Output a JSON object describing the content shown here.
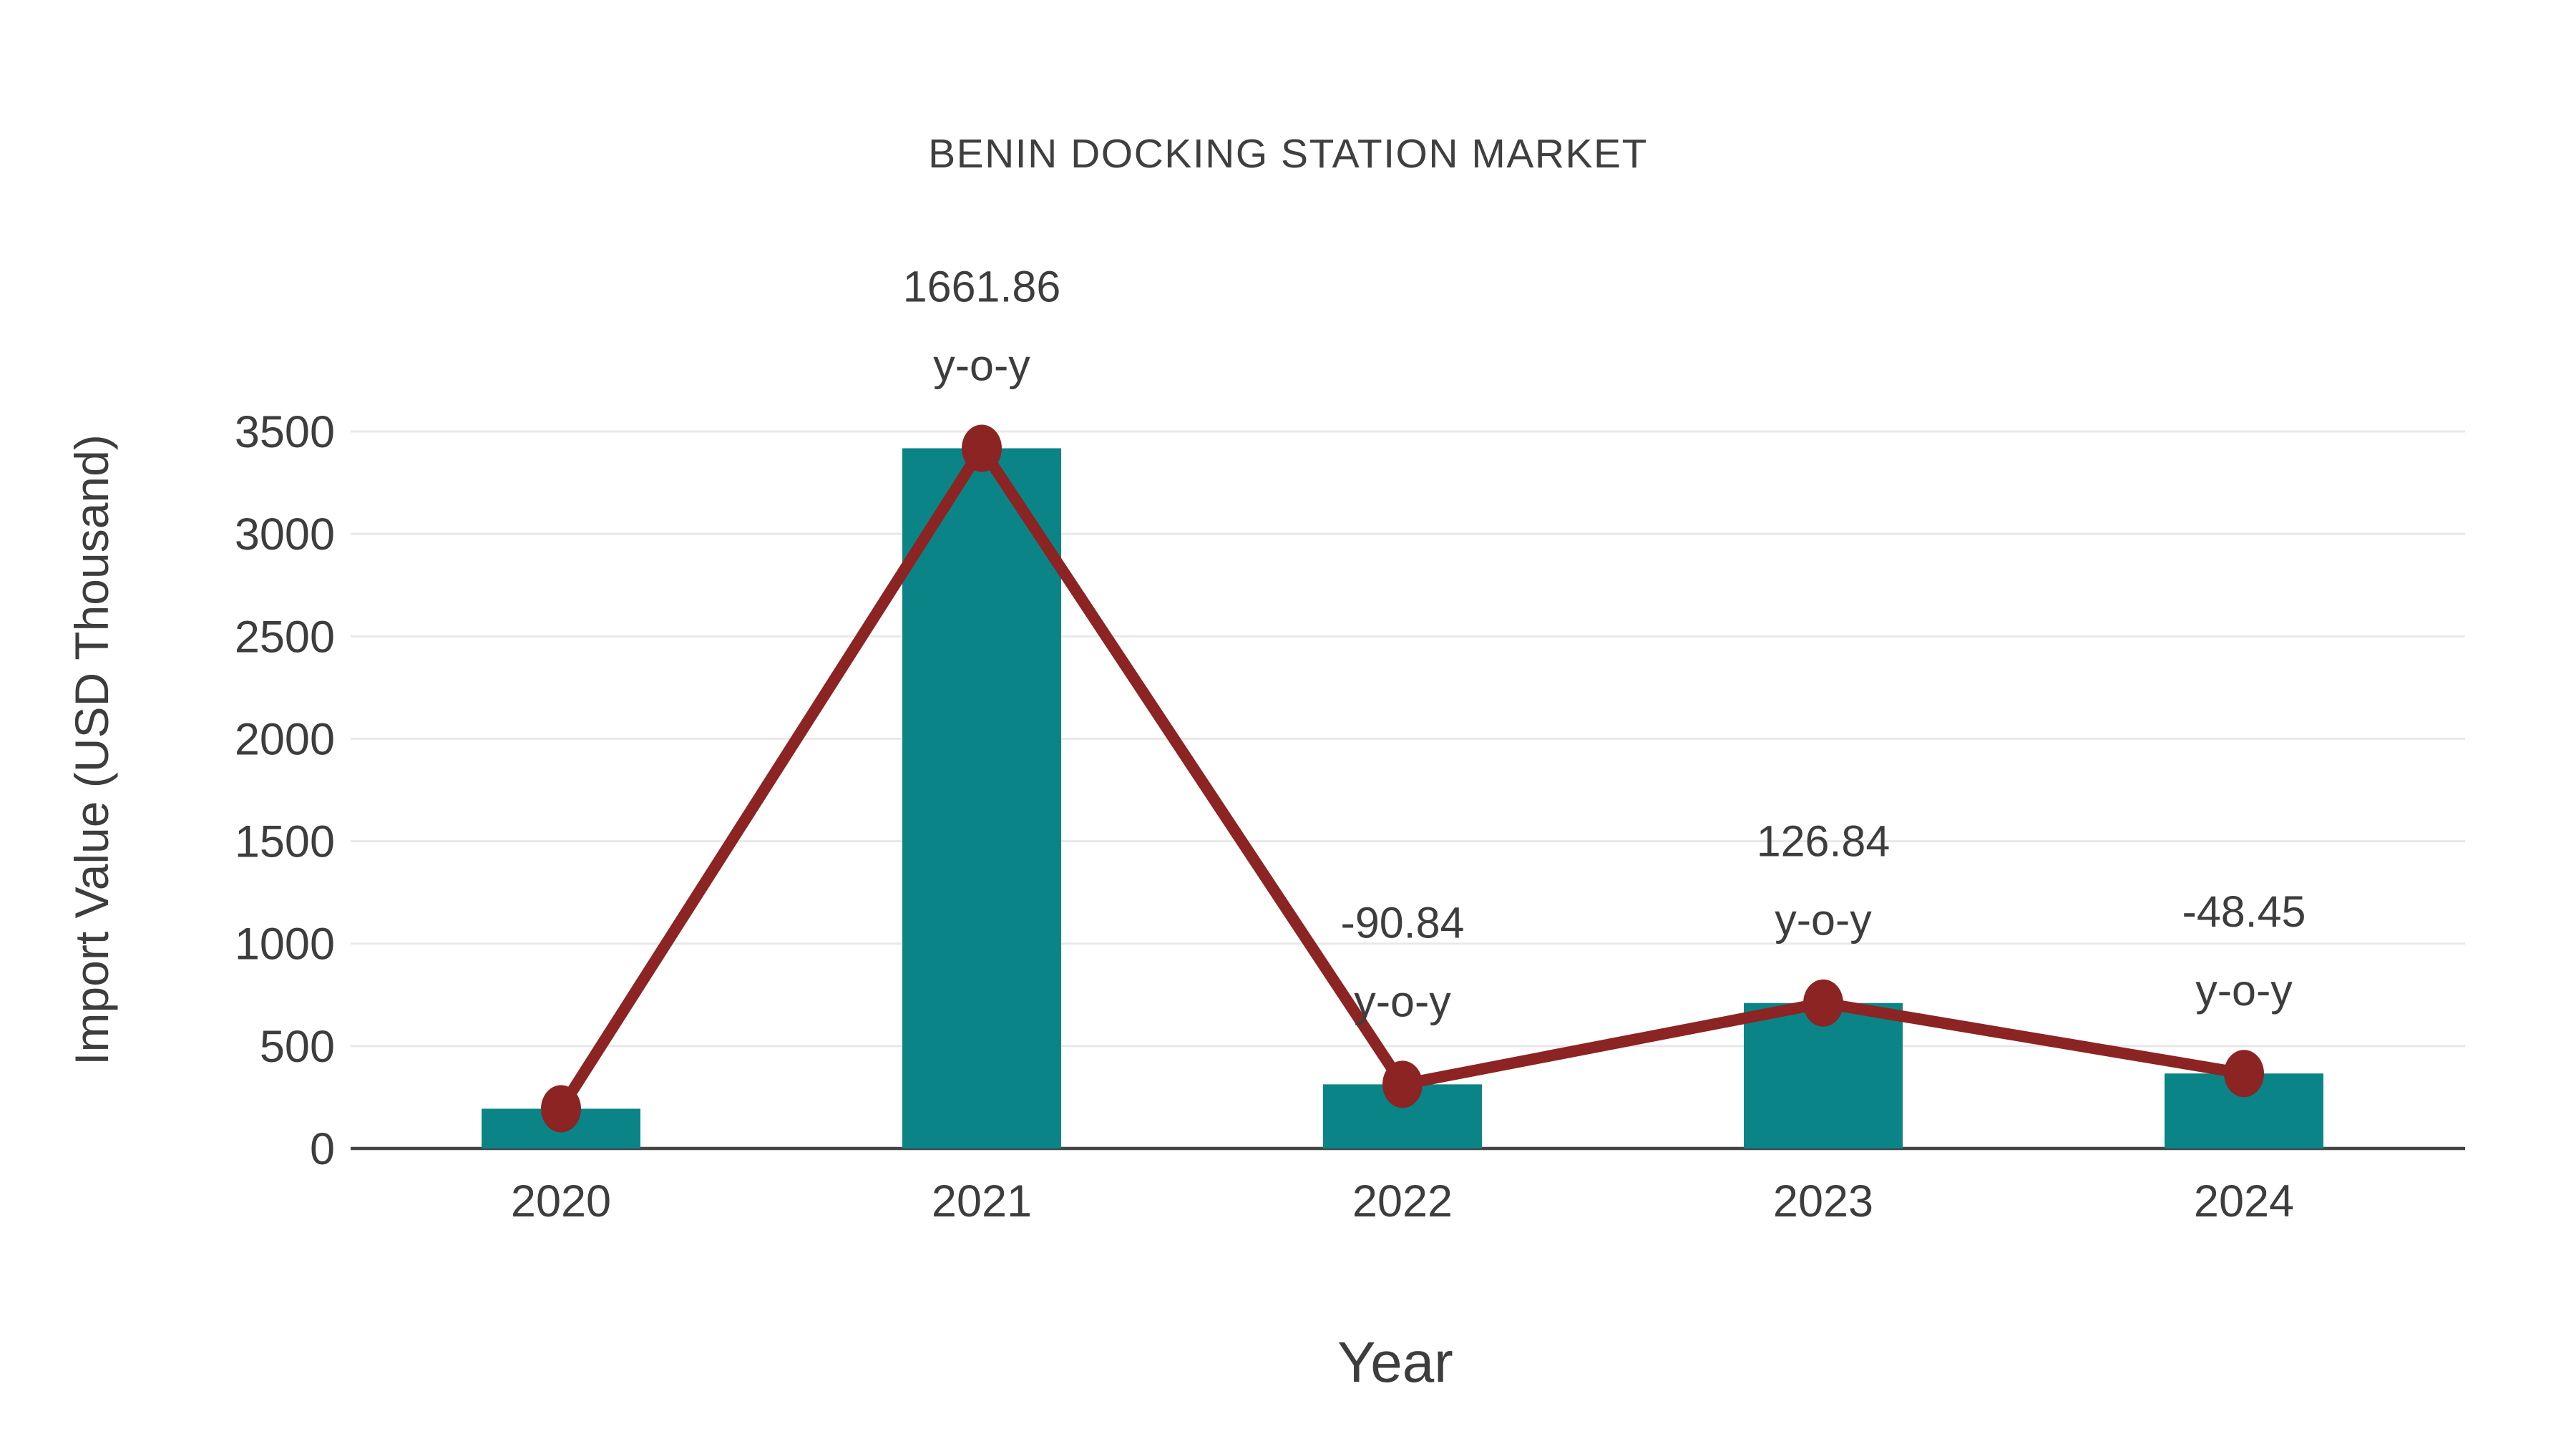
{
  "chart_data": {
    "type": "bar",
    "title": "BENIN DOCKING STATION MARKET",
    "xlabel": "Year",
    "ylabel": "Import Value (USD Thousand)",
    "categories": [
      "2020",
      "2021",
      "2022",
      "2023",
      "2024"
    ],
    "series": [
      {
        "name": "Import Value",
        "type": "bar",
        "values": [
          194,
          3418,
          313,
          710,
          366
        ]
      },
      {
        "name": "Import Value trend",
        "type": "line",
        "values": [
          194,
          3418,
          313,
          710,
          366
        ]
      }
    ],
    "annotations": [
      {
        "category": "2021",
        "value_text": "1661.86",
        "label_text": "y-o-y"
      },
      {
        "category": "2022",
        "value_text": "-90.84",
        "label_text": "y-o-y"
      },
      {
        "category": "2023",
        "value_text": "126.84",
        "label_text": "y-o-y"
      },
      {
        "category": "2024",
        "value_text": "-48.45",
        "label_text": "y-o-y"
      }
    ],
    "yticks": [
      0,
      500,
      1000,
      1500,
      2000,
      2500,
      3000,
      3500
    ],
    "ylim": [
      0,
      3500
    ],
    "grid": true,
    "legend": false,
    "colors": {
      "bar": "#0A8486",
      "line": "#8B2423",
      "marker": "#8B2423",
      "grid": "#E8E8E8",
      "axis": "#454545",
      "text": "#3d3d3d",
      "background": "#ffffff"
    }
  }
}
